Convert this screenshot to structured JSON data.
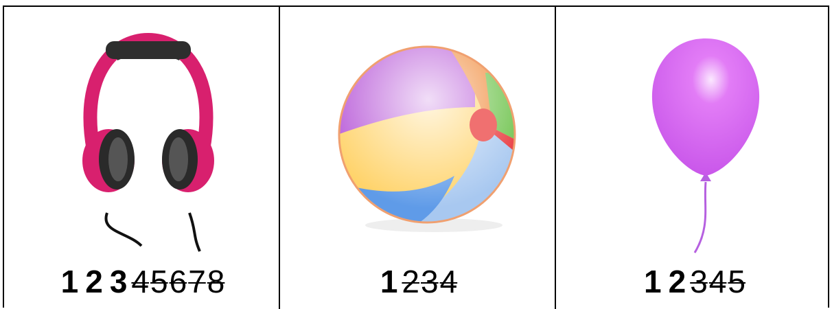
{
  "cells": [
    {
      "kept": [
        1,
        2,
        3
      ],
      "crossed": [
        4,
        5,
        6,
        7,
        8
      ]
    },
    {
      "kept": [
        1
      ],
      "crossed": [
        2,
        3,
        4
      ]
    },
    {
      "kept": [
        1,
        2
      ],
      "crossed": [
        3,
        4,
        5
      ]
    }
  ]
}
